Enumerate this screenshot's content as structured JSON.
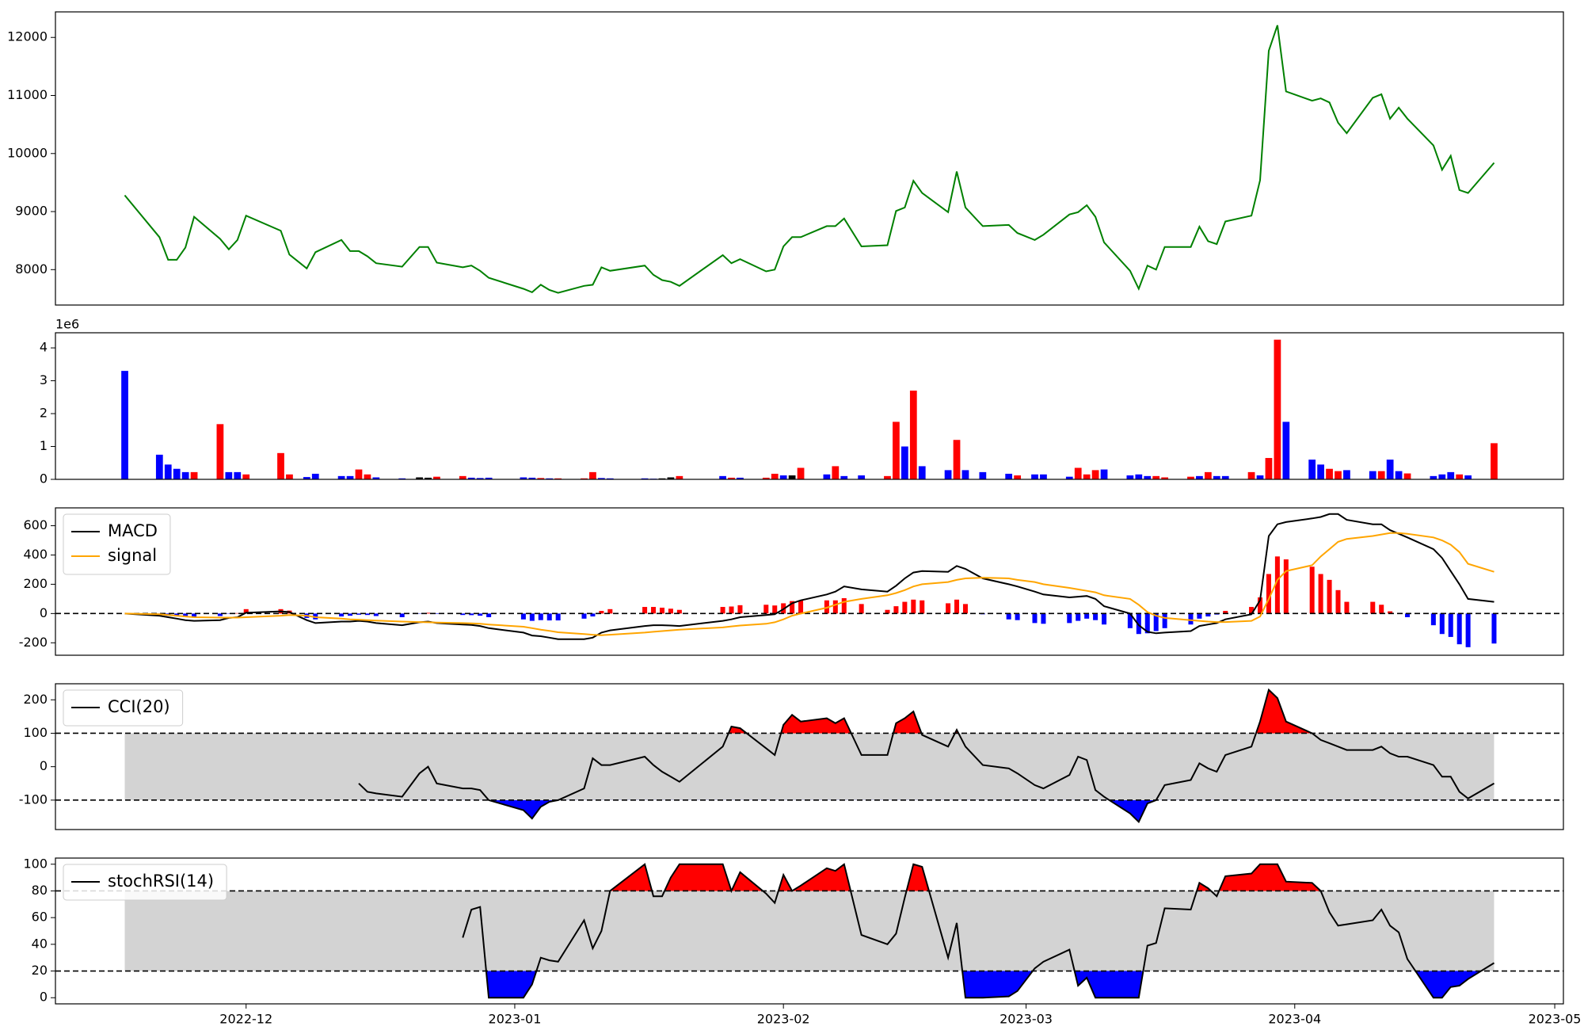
{
  "chart_data": [
    {
      "type": "line",
      "color": "green",
      "x": [
        "2022-11-17",
        "2022-11-21",
        "2022-11-22",
        "2022-11-23",
        "2022-11-24",
        "2022-11-25",
        "2022-11-28",
        "2022-11-29",
        "2022-11-30",
        "2022-12-01",
        "2022-12-05",
        "2022-12-06",
        "2022-12-08",
        "2022-12-09",
        "2022-12-12",
        "2022-12-13",
        "2022-12-14",
        "2022-12-15",
        "2022-12-16",
        "2022-12-19",
        "2022-12-21",
        "2022-12-22",
        "2022-12-23",
        "2022-12-26",
        "2022-12-27",
        "2022-12-28",
        "2022-12-29",
        "2023-01-02",
        "2023-01-03",
        "2023-01-04",
        "2023-01-05",
        "2023-01-06",
        "2023-01-09",
        "2023-01-10",
        "2023-01-11",
        "2023-01-12",
        "2023-01-16",
        "2023-01-17",
        "2023-01-18",
        "2023-01-19",
        "2023-01-20",
        "2023-01-25",
        "2023-01-26",
        "2023-01-27",
        "2023-01-30",
        "2023-01-31",
        "2023-02-01",
        "2023-02-02",
        "2023-02-03",
        "2023-02-06",
        "2023-02-07",
        "2023-02-08",
        "2023-02-10",
        "2023-02-13",
        "2023-02-14",
        "2023-02-15",
        "2023-02-16",
        "2023-02-17",
        "2023-02-20",
        "2023-02-21",
        "2023-02-22",
        "2023-02-24",
        "2023-02-27",
        "2023-02-28",
        "2023-03-02",
        "2023-03-03",
        "2023-03-06",
        "2023-03-07",
        "2023-03-08",
        "2023-03-09",
        "2023-03-10",
        "2023-03-13",
        "2023-03-14",
        "2023-03-15",
        "2023-03-16",
        "2023-03-17",
        "2023-03-20",
        "2023-03-21",
        "2023-03-22",
        "2023-03-23",
        "2023-03-24",
        "2023-03-27",
        "2023-03-28",
        "2023-03-29",
        "2023-03-30",
        "2023-03-31",
        "2023-04-03",
        "2023-04-04",
        "2023-04-05",
        "2023-04-06",
        "2023-04-07",
        "2023-04-10",
        "2023-04-11",
        "2023-04-12",
        "2023-04-13",
        "2023-04-14",
        "2023-04-17",
        "2023-04-18",
        "2023-04-19",
        "2023-04-20",
        "2023-04-21",
        "2023-04-24"
      ],
      "xlim": [
        "2022-11-09",
        "2023-05-02"
      ],
      "xticks": [
        "2022-12",
        "2023-01",
        "2023-02",
        "2023-03",
        "2023-04",
        "2023-05"
      ],
      "values": [
        9280,
        8560,
        8170,
        8170,
        8380,
        8910,
        8530,
        8350,
        8510,
        8930,
        8670,
        8260,
        8020,
        8300,
        8510,
        8320,
        8320,
        8230,
        8110,
        8050,
        8390,
        8390,
        8120,
        8040,
        8070,
        7980,
        7860,
        7670,
        7610,
        7740,
        7650,
        7600,
        7720,
        7740,
        8040,
        7980,
        8070,
        7910,
        7820,
        7790,
        7720,
        8250,
        8110,
        8180,
        7970,
        8000,
        8400,
        8560,
        8560,
        8750,
        8750,
        8880,
        8400,
        8420,
        9010,
        9070,
        9530,
        9320,
        8990,
        9690,
        9070,
        8750,
        8770,
        8630,
        8510,
        8600,
        8950,
        8990,
        9110,
        8910,
        8470,
        7980,
        7670,
        8070,
        8000,
        8390,
        8390,
        8740,
        8490,
        8440,
        8830,
        8930,
        9540,
        11770,
        12210,
        11070,
        10910,
        10950,
        10880,
        10530,
        10350,
        10960,
        11020,
        10600,
        10790,
        10600,
        10140,
        9720,
        9960,
        9370,
        9320,
        9840
      ],
      "ylim": [
        7390,
        12440
      ],
      "yticks": [
        8000,
        9000,
        10000,
        11000,
        12000
      ]
    },
    {
      "type": "bar",
      "offset_label": "1e6",
      "values": [
        3.3,
        0.75,
        0.45,
        0.32,
        0.22,
        0.22,
        1.68,
        0.22,
        0.22,
        0.15,
        0.8,
        0.15,
        0.07,
        0.17,
        0.1,
        0.1,
        0.3,
        0.15,
        0.06,
        0.03,
        0.06,
        0.05,
        0.08,
        0.1,
        0.05,
        0.04,
        0.05,
        0.06,
        0.05,
        0.04,
        0.03,
        0.03,
        0.03,
        0.22,
        0.04,
        0.03,
        0.03,
        0.02,
        0.03,
        0.06,
        0.1,
        0.1,
        0.05,
        0.05,
        0.05,
        0.17,
        0.12,
        0.12,
        0.35,
        0.15,
        0.4,
        0.1,
        0.12,
        0.1,
        1.75,
        1.0,
        2.7,
        0.4,
        0.28,
        1.2,
        0.28,
        0.22,
        0.17,
        0.12,
        0.15,
        0.15,
        0.08,
        0.35,
        0.15,
        0.28,
        0.3,
        0.12,
        0.15,
        0.1,
        0.1,
        0.06,
        0.08,
        0.1,
        0.22,
        0.1,
        0.1,
        0.22,
        0.12,
        0.65,
        4.25,
        1.75,
        0.6,
        0.45,
        0.32,
        0.25,
        0.28,
        0.25,
        0.25,
        0.6,
        0.25,
        0.18,
        0.1,
        0.15,
        0.22,
        0.15,
        0.12,
        1.1
      ],
      "colors": [
        "blue",
        "blue",
        "blue",
        "blue",
        "blue",
        "red",
        "red",
        "blue",
        "blue",
        "red",
        "red",
        "red",
        "blue",
        "blue",
        "blue",
        "blue",
        "red",
        "red",
        "blue",
        "blue",
        "black",
        "black",
        "red",
        "red",
        "blue",
        "blue",
        "blue",
        "blue",
        "blue",
        "red",
        "blue",
        "red",
        "red",
        "red",
        "blue",
        "blue",
        "blue",
        "blue",
        "black",
        "black",
        "red",
        "blue",
        "red",
        "blue",
        "red",
        "red",
        "blue",
        "black",
        "red",
        "blue",
        "red",
        "blue",
        "blue",
        "red",
        "red",
        "blue",
        "red",
        "blue",
        "blue",
        "red",
        "blue",
        "blue",
        "blue",
        "red",
        "blue",
        "blue",
        "blue",
        "red",
        "red",
        "red",
        "blue",
        "blue",
        "blue",
        "blue",
        "red",
        "red",
        "red",
        "blue",
        "red",
        "blue",
        "blue",
        "red",
        "blue",
        "red",
        "red",
        "blue",
        "blue",
        "blue",
        "red",
        "red",
        "blue",
        "blue",
        "red",
        "blue",
        "blue",
        "red",
        "blue",
        "blue",
        "blue",
        "red",
        "blue",
        "red"
      ],
      "ylim": [
        0,
        4.46
      ],
      "yticks": [
        0,
        1,
        2,
        3,
        4
      ]
    },
    {
      "type": "macd",
      "legend": "upper left",
      "hline": 0,
      "series": [
        {
          "name": "MACD",
          "color": "black",
          "values": [
            0,
            -15,
            -25,
            -35,
            -45,
            -50,
            -45,
            -30,
            -25,
            5,
            15,
            10,
            -45,
            -65,
            -55,
            -55,
            -50,
            -55,
            -65,
            -80,
            -60,
            -55,
            -65,
            -75,
            -78,
            -85,
            -100,
            -130,
            -150,
            -155,
            -165,
            -175,
            -175,
            -165,
            -130,
            -115,
            -85,
            -80,
            -80,
            -82,
            -85,
            -50,
            -40,
            -25,
            -10,
            -5,
            30,
            70,
            90,
            130,
            150,
            185,
            165,
            150,
            190,
            240,
            280,
            290,
            285,
            325,
            305,
            240,
            200,
            185,
            150,
            130,
            110,
            115,
            120,
            100,
            50,
            0,
            -80,
            -125,
            -135,
            -130,
            -120,
            -85,
            -75,
            -65,
            -40,
            -5,
            90,
            530,
            610,
            625,
            650,
            660,
            680,
            680,
            640,
            610,
            610,
            570,
            545,
            520,
            440,
            380,
            290,
            200,
            100,
            80
          ]
        },
        {
          "name": "signal",
          "color": "orange",
          "values": [
            0,
            -5,
            -10,
            -15,
            -20,
            -25,
            -28,
            -28,
            -28,
            -25,
            -15,
            -10,
            -15,
            -25,
            -35,
            -40,
            -42,
            -45,
            -48,
            -55,
            -58,
            -60,
            -62,
            -65,
            -67,
            -70,
            -75,
            -90,
            -100,
            -110,
            -118,
            -128,
            -140,
            -145,
            -148,
            -145,
            -130,
            -125,
            -120,
            -115,
            -110,
            -95,
            -88,
            -82,
            -70,
            -60,
            -40,
            -15,
            0,
            40,
            60,
            80,
            100,
            125,
            140,
            160,
            185,
            200,
            215,
            230,
            240,
            245,
            240,
            230,
            215,
            200,
            175,
            165,
            155,
            145,
            125,
            100,
            60,
            10,
            -15,
            -30,
            -45,
            -50,
            -55,
            -58,
            -58,
            -50,
            -20,
            100,
            230,
            290,
            330,
            390,
            440,
            490,
            510,
            530,
            540,
            550,
            550,
            545,
            520,
            500,
            470,
            420,
            340,
            285
          ]
        }
      ],
      "histogram": {
        "values": [
          0,
          -10,
          -15,
          -20,
          -25,
          -25,
          -17,
          -2,
          3,
          30,
          30,
          20,
          -30,
          -40,
          -20,
          -15,
          -8,
          -10,
          -17,
          -25,
          -2,
          5,
          -3,
          -10,
          -11,
          -15,
          -25,
          -40,
          -50,
          -45,
          -47,
          -47,
          -35,
          -20,
          18,
          30,
          45,
          45,
          40,
          33,
          25,
          45,
          48,
          57,
          60,
          55,
          70,
          85,
          90,
          90,
          90,
          105,
          65,
          25,
          50,
          80,
          95,
          90,
          70,
          95,
          65,
          -5,
          -40,
          -45,
          -65,
          -70,
          -65,
          -50,
          -35,
          -45,
          -75,
          -100,
          -140,
          -135,
          -120,
          -100,
          -75,
          -35,
          -20,
          -7,
          18,
          45,
          110,
          270,
          390,
          370,
          320,
          270,
          230,
          160,
          80,
          80,
          60,
          15,
          0,
          -25,
          -80,
          -140,
          -160,
          -210,
          -230,
          -205
        ],
        "positive_color": "red",
        "negative_color": "blue"
      },
      "ylim": [
        -285,
        722
      ],
      "yticks": [
        -200,
        0,
        200,
        400,
        600
      ]
    },
    {
      "type": "oscillator",
      "legend": "upper left",
      "band": [
        -100,
        100
      ],
      "band_color": "lightgray",
      "above_color": "red",
      "below_color": "blue",
      "series": [
        {
          "name": "CCI(20)",
          "color": "black",
          "values": [
            null,
            null,
            null,
            null,
            null,
            null,
            null,
            null,
            null,
            null,
            null,
            null,
            null,
            null,
            null,
            null,
            -50,
            -75,
            -80,
            -90,
            -20,
            0,
            -50,
            -65,
            -65,
            -70,
            -100,
            -130,
            -155,
            -120,
            -105,
            -100,
            -65,
            25,
            5,
            5,
            30,
            5,
            -15,
            -30,
            -45,
            60,
            120,
            115,
            55,
            35,
            125,
            155,
            135,
            145,
            130,
            145,
            35,
            35,
            130,
            145,
            165,
            95,
            60,
            110,
            60,
            5,
            -5,
            -20,
            -55,
            -65,
            -25,
            30,
            20,
            -70,
            -90,
            -140,
            -165,
            -110,
            -100,
            -55,
            -40,
            10,
            -5,
            -15,
            35,
            60,
            135,
            230,
            205,
            135,
            100,
            80,
            70,
            60,
            50,
            50,
            60,
            40,
            30,
            30,
            5,
            -30,
            -30,
            -75,
            -95,
            -50
          ]
        }
      ],
      "ylim": [
        -188,
        248
      ],
      "yticks": [
        -100,
        0,
        100,
        200
      ]
    },
    {
      "type": "oscillator",
      "legend": "upper left",
      "band": [
        20,
        80
      ],
      "band_color": "lightgray",
      "above_color": "red",
      "below_color": "blue",
      "series": [
        {
          "name": "stochRSI(14)",
          "color": "black",
          "values": [
            null,
            null,
            null,
            null,
            null,
            null,
            null,
            null,
            null,
            null,
            null,
            null,
            null,
            null,
            null,
            null,
            null,
            null,
            null,
            null,
            null,
            null,
            null,
            45,
            66,
            68,
            0,
            0,
            10,
            30,
            28,
            27,
            58,
            37,
            50,
            80,
            100,
            76,
            76,
            90,
            100,
            100,
            80,
            94,
            78,
            71,
            92,
            80,
            84,
            97,
            95,
            100,
            47,
            40,
            48,
            75,
            100,
            98,
            30,
            56,
            0,
            0,
            1,
            5,
            22,
            27,
            36,
            9,
            15,
            0,
            0,
            0,
            0,
            39,
            41,
            67,
            66,
            86,
            82,
            76,
            91,
            93,
            100,
            100,
            100,
            87,
            86,
            80,
            64,
            54,
            55,
            58,
            66,
            54,
            49,
            29,
            0,
            0,
            8,
            9,
            14,
            26
          ]
        }
      ],
      "ylim": [
        -4.6,
        104.6
      ],
      "yticks": [
        0,
        20,
        40,
        60,
        80,
        100
      ]
    }
  ]
}
